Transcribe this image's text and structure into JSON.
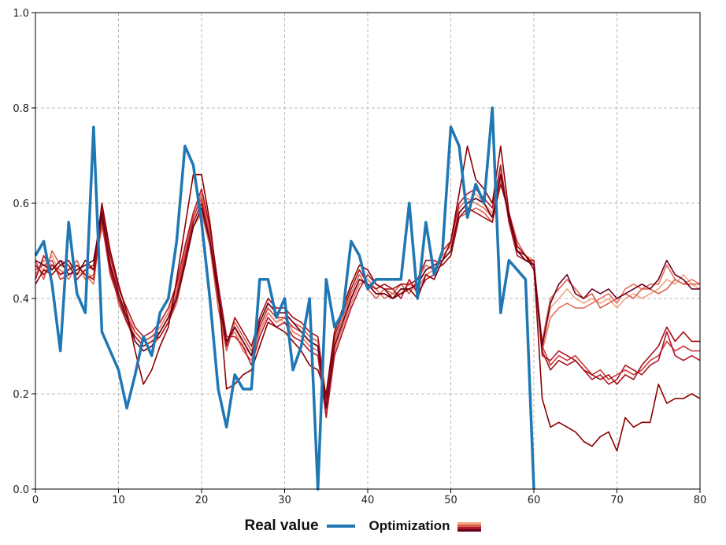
{
  "chart_data": {
    "type": "line",
    "xlim": [
      0,
      80
    ],
    "ylim": [
      0.0,
      1.0
    ],
    "x_ticks": [
      0,
      10,
      20,
      30,
      40,
      50,
      60,
      70,
      80
    ],
    "y_ticks": [
      0.0,
      0.2,
      0.4,
      0.6,
      0.8,
      1.0
    ],
    "x_tick_labels": [
      "0",
      "10",
      "20",
      "30",
      "40",
      "50",
      "60",
      "70",
      "80"
    ],
    "y_tick_labels": [
      "0.0",
      "0.2",
      "0.4",
      "0.6",
      "0.8",
      "1.0"
    ],
    "grid": true,
    "legend_position": "bottom-center",
    "colors": {
      "real": "#1f77b4",
      "optimization": [
        "#f4a582",
        "#e8705a",
        "#d6604d",
        "#c93c3c",
        "#b2182b",
        "#a50f15",
        "#8b0000",
        "#67001f"
      ]
    },
    "series": [
      {
        "name": "Real value",
        "x": [
          0,
          1,
          2,
          3,
          4,
          5,
          6,
          7,
          8,
          9,
          10,
          11,
          12,
          13,
          14,
          15,
          16,
          17,
          18,
          19,
          20,
          21,
          22,
          23,
          24,
          25,
          26,
          27,
          28,
          29,
          30,
          31,
          32,
          33,
          34,
          35,
          36,
          37,
          38,
          39,
          40,
          41,
          42,
          43,
          44,
          45,
          46,
          47,
          48,
          49,
          50,
          51,
          52,
          53,
          54,
          55,
          56,
          57,
          58,
          59,
          60
        ],
        "values": [
          0.49,
          0.52,
          0.43,
          0.29,
          0.56,
          0.41,
          0.37,
          0.76,
          0.33,
          0.29,
          0.25,
          0.17,
          0.24,
          0.32,
          0.28,
          0.37,
          0.4,
          0.52,
          0.72,
          0.68,
          0.56,
          0.4,
          0.21,
          0.13,
          0.24,
          0.21,
          0.21,
          0.44,
          0.44,
          0.36,
          0.4,
          0.25,
          0.3,
          0.4,
          0.0,
          0.44,
          0.34,
          0.37,
          0.52,
          0.49,
          0.42,
          0.44,
          0.44,
          0.44,
          0.44,
          0.6,
          0.4,
          0.56,
          0.45,
          0.5,
          0.76,
          0.72,
          0.57,
          0.64,
          0.6,
          0.8,
          0.37,
          0.48,
          0.46,
          0.44,
          0.0
        ]
      },
      {
        "name": "",
        "values": [
          0.47,
          0.46,
          0.49,
          0.45,
          0.47,
          0.45,
          0.46,
          0.44,
          0.57,
          0.46,
          0.4,
          0.36,
          0.32,
          0.3,
          0.31,
          0.33,
          0.36,
          0.4,
          0.48,
          0.56,
          0.6,
          0.52,
          0.4,
          0.3,
          0.34,
          0.3,
          0.28,
          0.34,
          0.38,
          0.36,
          0.35,
          0.34,
          0.33,
          0.31,
          0.3,
          0.17,
          0.3,
          0.35,
          0.4,
          0.44,
          0.43,
          0.41,
          0.41,
          0.4,
          0.42,
          0.42,
          0.43,
          0.46,
          0.47,
          0.48,
          0.5,
          0.58,
          0.6,
          0.62,
          0.6,
          0.58,
          0.66,
          0.56,
          0.5,
          0.48,
          0.47,
          0.3,
          0.38,
          0.4,
          0.42,
          0.4,
          0.39,
          0.4,
          0.39,
          0.4,
          0.38,
          0.4,
          0.41,
          0.4,
          0.41,
          0.42,
          0.44,
          0.43,
          0.45,
          0.43,
          0.42
        ]
      },
      {
        "name": "",
        "values": [
          0.45,
          0.48,
          0.47,
          0.46,
          0.44,
          0.47,
          0.45,
          0.43,
          0.58,
          0.48,
          0.41,
          0.37,
          0.33,
          0.31,
          0.32,
          0.34,
          0.37,
          0.42,
          0.5,
          0.57,
          0.62,
          0.54,
          0.42,
          0.31,
          0.33,
          0.29,
          0.27,
          0.33,
          0.37,
          0.35,
          0.36,
          0.33,
          0.32,
          0.3,
          0.29,
          0.16,
          0.29,
          0.34,
          0.39,
          0.43,
          0.44,
          0.42,
          0.4,
          0.41,
          0.41,
          0.43,
          0.42,
          0.45,
          0.46,
          0.49,
          0.51,
          0.59,
          0.61,
          0.6,
          0.59,
          0.57,
          0.67,
          0.57,
          0.51,
          0.49,
          0.48,
          0.29,
          0.36,
          0.38,
          0.39,
          0.38,
          0.38,
          0.39,
          0.4,
          0.41,
          0.39,
          0.42,
          0.43,
          0.42,
          0.43,
          0.43,
          0.47,
          0.44,
          0.43,
          0.44,
          0.43
        ]
      },
      {
        "name": "",
        "values": [
          0.48,
          0.44,
          0.5,
          0.47,
          0.46,
          0.48,
          0.44,
          0.45,
          0.55,
          0.47,
          0.39,
          0.35,
          0.31,
          0.29,
          0.3,
          0.32,
          0.35,
          0.39,
          0.47,
          0.55,
          0.58,
          0.51,
          0.38,
          0.29,
          0.35,
          0.32,
          0.29,
          0.35,
          0.39,
          0.37,
          0.37,
          0.35,
          0.34,
          0.32,
          0.31,
          0.18,
          0.31,
          0.36,
          0.41,
          0.45,
          0.42,
          0.4,
          0.42,
          0.41,
          0.43,
          0.41,
          0.44,
          0.47,
          0.46,
          0.47,
          0.49,
          0.57,
          0.58,
          0.59,
          0.58,
          0.56,
          0.65,
          0.58,
          0.52,
          0.49,
          0.47,
          0.31,
          0.4,
          0.42,
          0.44,
          0.42,
          0.4,
          0.41,
          0.38,
          0.39,
          0.4,
          0.41,
          0.4,
          0.42,
          0.42,
          0.41,
          0.42,
          0.44,
          0.43,
          0.43,
          0.43
        ]
      },
      {
        "name": "",
        "values": [
          0.46,
          0.47,
          0.48,
          0.44,
          0.45,
          0.46,
          0.47,
          0.46,
          0.56,
          0.45,
          0.4,
          0.36,
          0.33,
          0.31,
          0.32,
          0.33,
          0.36,
          0.41,
          0.49,
          0.57,
          0.61,
          0.53,
          0.41,
          0.3,
          0.34,
          0.31,
          0.28,
          0.34,
          0.38,
          0.36,
          0.36,
          0.34,
          0.33,
          0.31,
          0.3,
          0.17,
          0.3,
          0.35,
          0.4,
          0.44,
          0.43,
          0.41,
          0.41,
          0.4,
          0.42,
          0.42,
          0.43,
          0.46,
          0.47,
          0.48,
          0.5,
          0.58,
          0.6,
          0.61,
          0.6,
          0.57,
          0.66,
          0.57,
          0.5,
          0.48,
          0.47,
          0.3,
          0.26,
          0.28,
          0.27,
          0.28,
          0.26,
          0.24,
          0.25,
          0.23,
          0.24,
          0.25,
          0.24,
          0.25,
          0.27,
          0.28,
          0.31,
          0.29,
          0.3,
          0.29,
          0.29
        ]
      },
      {
        "name": "",
        "values": [
          0.44,
          0.49,
          0.46,
          0.48,
          0.47,
          0.44,
          0.46,
          0.47,
          0.59,
          0.49,
          0.42,
          0.38,
          0.34,
          0.32,
          0.33,
          0.35,
          0.38,
          0.43,
          0.51,
          0.58,
          0.63,
          0.55,
          0.43,
          0.32,
          0.32,
          0.3,
          0.26,
          0.32,
          0.36,
          0.34,
          0.35,
          0.32,
          0.31,
          0.29,
          0.28,
          0.15,
          0.28,
          0.33,
          0.38,
          0.42,
          0.45,
          0.43,
          0.42,
          0.42,
          0.4,
          0.44,
          0.41,
          0.44,
          0.45,
          0.5,
          0.52,
          0.6,
          0.62,
          0.63,
          0.61,
          0.59,
          0.68,
          0.56,
          0.49,
          0.48,
          0.48,
          0.28,
          0.27,
          0.29,
          0.28,
          0.27,
          0.25,
          0.23,
          0.24,
          0.22,
          0.23,
          0.26,
          0.25,
          0.24,
          0.26,
          0.27,
          0.33,
          0.28,
          0.27,
          0.28,
          0.27
        ]
      },
      {
        "name": "",
        "values": [
          0.47,
          0.45,
          0.47,
          0.45,
          0.46,
          0.47,
          0.45,
          0.44,
          0.57,
          0.46,
          0.4,
          0.35,
          0.32,
          0.3,
          0.31,
          0.32,
          0.35,
          0.4,
          0.48,
          0.56,
          0.6,
          0.52,
          0.4,
          0.3,
          0.36,
          0.33,
          0.3,
          0.36,
          0.4,
          0.38,
          0.38,
          0.36,
          0.35,
          0.33,
          0.32,
          0.19,
          0.32,
          0.37,
          0.42,
          0.46,
          0.43,
          0.42,
          0.43,
          0.42,
          0.43,
          0.43,
          0.44,
          0.48,
          0.48,
          0.47,
          0.49,
          0.57,
          0.59,
          0.58,
          0.57,
          0.56,
          0.64,
          0.58,
          0.51,
          0.49,
          0.46,
          0.29,
          0.25,
          0.27,
          0.26,
          0.27,
          0.25,
          0.24,
          0.23,
          0.24,
          0.22,
          0.24,
          0.23,
          0.26,
          0.28,
          0.3,
          0.34,
          0.31,
          0.33,
          0.31,
          0.31
        ]
      },
      {
        "name": "",
        "values": [
          0.43,
          0.46,
          0.45,
          0.47,
          0.48,
          0.45,
          0.48,
          0.46,
          0.6,
          0.5,
          0.43,
          0.37,
          0.29,
          0.22,
          0.25,
          0.3,
          0.34,
          0.44,
          0.55,
          0.66,
          0.66,
          0.56,
          0.42,
          0.21,
          0.22,
          0.24,
          0.25,
          0.3,
          0.35,
          0.34,
          0.33,
          0.31,
          0.29,
          0.26,
          0.25,
          0.2,
          0.33,
          0.38,
          0.43,
          0.47,
          0.46,
          0.43,
          0.42,
          0.4,
          0.41,
          0.42,
          0.4,
          0.45,
          0.44,
          0.48,
          0.52,
          0.62,
          0.72,
          0.65,
          0.63,
          0.6,
          0.72,
          0.58,
          0.5,
          0.49,
          0.47,
          0.19,
          0.13,
          0.14,
          0.13,
          0.12,
          0.1,
          0.09,
          0.11,
          0.12,
          0.08,
          0.15,
          0.13,
          0.14,
          0.14,
          0.22,
          0.18,
          0.19,
          0.19,
          0.2,
          0.19
        ]
      },
      {
        "name": "",
        "values": [
          0.48,
          0.47,
          0.46,
          0.48,
          0.45,
          0.46,
          0.47,
          0.48,
          0.58,
          0.47,
          0.41,
          0.36,
          0.31,
          0.29,
          0.3,
          0.33,
          0.36,
          0.4,
          0.47,
          0.55,
          0.59,
          0.52,
          0.41,
          0.31,
          0.34,
          0.31,
          0.28,
          0.35,
          0.39,
          0.37,
          0.37,
          0.35,
          0.33,
          0.31,
          0.3,
          0.17,
          0.3,
          0.35,
          0.4,
          0.44,
          0.43,
          0.41,
          0.41,
          0.4,
          0.42,
          0.42,
          0.43,
          0.46,
          0.47,
          0.48,
          0.5,
          0.58,
          0.6,
          0.61,
          0.6,
          0.57,
          0.66,
          0.57,
          0.5,
          0.48,
          0.47,
          0.3,
          0.39,
          0.43,
          0.45,
          0.41,
          0.4,
          0.42,
          0.41,
          0.42,
          0.4,
          0.41,
          0.42,
          0.43,
          0.42,
          0.44,
          0.48,
          0.45,
          0.44,
          0.42,
          0.42
        ]
      }
    ]
  },
  "legend": {
    "real_label": "Real value",
    "opt_label": "Optimization"
  }
}
